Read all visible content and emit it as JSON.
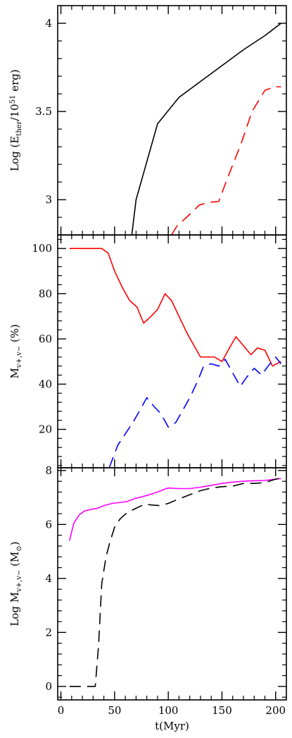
{
  "chart_data": [
    {
      "type": "line",
      "ylabel_parts": [
        "Log (E",
        "ther",
        "/10",
        "51",
        " erg)"
      ],
      "xlim": [
        -3,
        210
      ],
      "ylim": [
        2.8,
        4.1
      ],
      "yticks": [
        3,
        3.5,
        4
      ],
      "ytick_labels": [
        "3",
        "3.5",
        "4"
      ],
      "series": [
        {
          "color": "#000000",
          "dash": "solid",
          "x": [
            66,
            70,
            90,
            110,
            130,
            150,
            170,
            190,
            205
          ],
          "y": [
            2.8,
            3.0,
            3.43,
            3.58,
            3.67,
            3.76,
            3.85,
            3.93,
            4.0
          ]
        },
        {
          "color": "#ff0000",
          "dash": "dashed",
          "x": [
            103,
            108,
            117,
            129,
            138,
            147,
            155,
            168,
            178,
            190,
            199,
            205
          ],
          "y": [
            2.8,
            2.85,
            2.9,
            2.97,
            2.985,
            2.99,
            3.12,
            3.32,
            3.5,
            3.62,
            3.64,
            3.64
          ]
        }
      ]
    },
    {
      "type": "line",
      "ylabel_parts": [
        "M",
        "v+,v−",
        "  (%)"
      ],
      "xlim": [
        -3,
        210
      ],
      "ylim": [
        3,
        106
      ],
      "yticks": [
        20,
        40,
        60,
        80,
        100
      ],
      "ytick_labels": [
        "20",
        "40",
        "60",
        "80",
        "100"
      ],
      "series": [
        {
          "color": "#ff0000",
          "dash": "solid",
          "x": [
            8,
            20,
            30,
            38,
            44,
            50,
            57,
            64,
            71,
            77,
            84,
            90,
            97,
            103,
            110,
            117,
            124,
            130,
            137,
            143,
            150,
            157,
            163,
            170,
            177,
            183,
            190,
            197,
            205
          ],
          "y": [
            100,
            100,
            100,
            100,
            98,
            90,
            83,
            77,
            74,
            67,
            70,
            73,
            80,
            77,
            70,
            63,
            57,
            52,
            52,
            52,
            50,
            56,
            61,
            57,
            53,
            56,
            55,
            48,
            50
          ]
        },
        {
          "color": "#0000ff",
          "dash": "dashed",
          "x": [
            45,
            53,
            60,
            67,
            73,
            80,
            87,
            93,
            100,
            107,
            113,
            120,
            127,
            133,
            140,
            147,
            153,
            160,
            167,
            173,
            180,
            187,
            193,
            200,
            205
          ],
          "y": [
            3,
            13,
            18,
            23,
            28,
            34,
            30,
            27,
            21,
            23,
            28,
            34,
            41,
            48,
            49,
            48,
            51,
            45,
            39,
            43,
            47,
            44,
            48,
            52,
            49
          ]
        }
      ]
    },
    {
      "type": "line",
      "ylabel_parts": [
        "Log M",
        "v+,v−",
        "  (M",
        "⊙",
        ")"
      ],
      "xlabel": "t(Myr)",
      "xlim": [
        -3,
        210
      ],
      "ylim": [
        -0.5,
        8.1
      ],
      "xticks": [
        0,
        50,
        100,
        150,
        200
      ],
      "xtick_labels": [
        "0",
        "50",
        "100",
        "150",
        "200"
      ],
      "yticks": [
        0,
        2,
        4,
        6,
        8
      ],
      "ytick_labels": [
        "0",
        "2",
        "4",
        "6",
        "8"
      ],
      "series": [
        {
          "color": "#ff00ff",
          "dash": "solid",
          "x": [
            8,
            12,
            17,
            22,
            28,
            34,
            40,
            48,
            56,
            62,
            68,
            75,
            82,
            90,
            96,
            100,
            110,
            120,
            130,
            140,
            150,
            160,
            170,
            180,
            190,
            200,
            205
          ],
          "y": [
            5.4,
            6.05,
            6.35,
            6.5,
            6.56,
            6.6,
            6.7,
            6.78,
            6.82,
            6.85,
            6.95,
            7.02,
            7.1,
            7.2,
            7.3,
            7.35,
            7.33,
            7.33,
            7.38,
            7.45,
            7.52,
            7.57,
            7.6,
            7.62,
            7.63,
            7.68,
            7.7
          ]
        },
        {
          "color": "#000000",
          "dash": "dashed",
          "x": [
            8,
            20,
            32,
            35,
            38,
            42,
            46,
            50,
            55,
            62,
            70,
            78,
            85,
            92,
            100,
            110,
            120,
            130,
            140,
            150,
            160,
            170,
            180,
            190,
            200,
            205
          ],
          "y": [
            0,
            0,
            0,
            1.5,
            3.8,
            4.8,
            5.4,
            5.9,
            6.2,
            6.45,
            6.6,
            6.75,
            6.72,
            6.7,
            6.78,
            6.95,
            7.1,
            7.25,
            7.35,
            7.4,
            7.42,
            7.52,
            7.52,
            7.55,
            7.68,
            7.72
          ]
        }
      ]
    }
  ]
}
